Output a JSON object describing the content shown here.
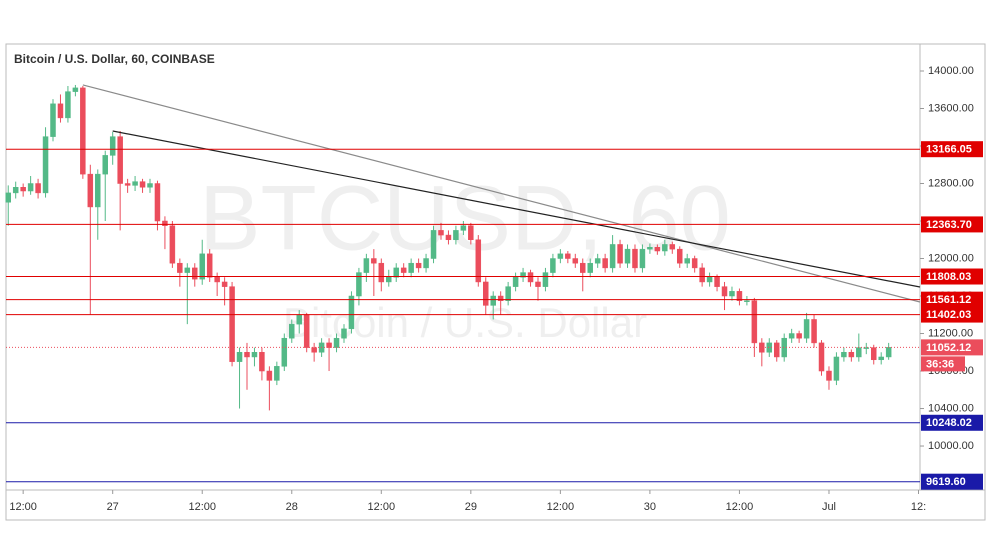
{
  "chart_data": {
    "type": "candlestick",
    "title": "Bitcoin / U.S. Dollar, 60, COINBASE",
    "watermark_symbol": "BTCUSD, 60",
    "watermark_name": "Bitcoin / U.S. Dollar",
    "up_color": "#53b987",
    "down_color": "#eb4d5c",
    "open": [
      12600,
      12700,
      12760,
      12720,
      12800,
      12700,
      13300,
      13650,
      13500,
      13780,
      13820,
      12900,
      12550,
      12900,
      13100,
      13300,
      12800,
      12780,
      12820,
      12760,
      12800,
      12400,
      12350,
      11950,
      11850,
      11900,
      11780,
      12050,
      11800,
      11750,
      11700,
      10900,
      11000,
      10950,
      11000,
      10800,
      10700,
      10850,
      11150,
      11300,
      11400,
      11050,
      11000,
      11100,
      11050,
      11150,
      11250,
      11600,
      11850,
      12000,
      11950,
      11750,
      11800,
      11900,
      11850,
      11950,
      11900,
      12000,
      12300,
      12250,
      12200,
      12300,
      12350,
      12200,
      11750,
      11500,
      11600,
      11550,
      11700,
      11800,
      11850,
      11750,
      11700,
      11850,
      12000,
      12050,
      12000,
      11950,
      11850,
      11950,
      12000,
      11900,
      12150,
      11950,
      12100,
      11900,
      12100,
      12120,
      12080,
      12150,
      12100,
      11950,
      12000,
      11900,
      11750,
      11800,
      11700,
      11600,
      11650,
      11550,
      11550,
      11100,
      11000,
      11100,
      10950,
      11150,
      11200,
      11150,
      11350,
      11100,
      10800,
      10700,
      10950,
      11000,
      10950,
      11050,
      11050,
      10920,
      10950
    ],
    "high": [
      12780,
      12820,
      12800,
      12880,
      12850,
      13400,
      13700,
      13750,
      13840,
      13851,
      13840,
      13000,
      12950,
      13150,
      13350,
      13360,
      12850,
      12880,
      12850,
      12850,
      12830,
      12450,
      12400,
      12000,
      11950,
      11950,
      12200,
      12100,
      11850,
      11800,
      11750,
      11050,
      11100,
      11050,
      11050,
      10850,
      10900,
      11200,
      11350,
      11450,
      11420,
      11100,
      11150,
      11150,
      11200,
      11300,
      11650,
      11900,
      12050,
      12100,
      12000,
      11880,
      11950,
      11950,
      12000,
      12000,
      12050,
      12350,
      12380,
      12300,
      12350,
      12400,
      12380,
      12250,
      11800,
      11650,
      11650,
      11750,
      11850,
      11900,
      11880,
      11800,
      11900,
      12050,
      12100,
      12080,
      12050,
      12000,
      12000,
      12050,
      12050,
      12250,
      12200,
      12150,
      12150,
      12150,
      12160,
      12150,
      12200,
      12180,
      12130,
      12050,
      12030,
      11950,
      11850,
      11830,
      11750,
      11700,
      11680,
      11600,
      11580,
      11150,
      11150,
      11130,
      11200,
      11250,
      11230,
      11420,
      11400,
      11130,
      10850,
      11000,
      11050,
      11030,
      11200,
      11100,
      11080,
      11000,
      11100
    ],
    "low": [
      12350,
      12640,
      12660,
      12680,
      12640,
      12650,
      13250,
      13450,
      13450,
      13730,
      12850,
      11400,
      12200,
      12400,
      13000,
      12300,
      12700,
      12720,
      12700,
      12700,
      12300,
      12100,
      11900,
      11700,
      11300,
      11700,
      11720,
      11750,
      11600,
      11500,
      10850,
      10400,
      10600,
      10850,
      10700,
      10380,
      10650,
      10800,
      11100,
      11200,
      11000,
      10900,
      10950,
      10800,
      11000,
      11100,
      11200,
      11500,
      11750,
      11600,
      11650,
      11700,
      11750,
      11800,
      11800,
      11850,
      11850,
      11950,
      12200,
      12150,
      12150,
      12250,
      12150,
      11700,
      11400,
      11350,
      11400,
      11500,
      11650,
      11750,
      11700,
      11550,
      11650,
      11800,
      11950,
      11950,
      11900,
      11650,
      11800,
      11900,
      11850,
      11850,
      11900,
      11900,
      11850,
      11850,
      12050,
      12040,
      12030,
      12050,
      11900,
      11900,
      11850,
      11700,
      11700,
      11650,
      11450,
      11550,
      11500,
      11500,
      10950,
      10850,
      10950,
      10900,
      10900,
      11100,
      11100,
      11100,
      11050,
      10750,
      10600,
      10650,
      10900,
      10900,
      10900,
      10980,
      10870,
      10870,
      10920
    ],
    "close": [
      12700,
      12760,
      12720,
      12800,
      12700,
      13300,
      13650,
      13500,
      13780,
      13820,
      12900,
      12550,
      12900,
      13100,
      13300,
      12800,
      12780,
      12820,
      12760,
      12800,
      12400,
      12350,
      11950,
      11850,
      11900,
      11780,
      12050,
      11800,
      11750,
      11700,
      10900,
      11000,
      10950,
      11000,
      10800,
      10700,
      10850,
      11150,
      11300,
      11400,
      11050,
      11000,
      11100,
      11050,
      11150,
      11250,
      11600,
      11850,
      12000,
      11950,
      11750,
      11800,
      11900,
      11850,
      11950,
      11900,
      12000,
      12300,
      12250,
      12200,
      12300,
      12350,
      12200,
      11750,
      11500,
      11600,
      11550,
      11700,
      11800,
      11850,
      11750,
      11700,
      11850,
      12000,
      12050,
      12000,
      11950,
      11850,
      11950,
      12000,
      11900,
      12150,
      11950,
      12100,
      11900,
      12100,
      12120,
      12080,
      12150,
      12100,
      11950,
      12000,
      11900,
      11750,
      11800,
      11700,
      11600,
      11650,
      11550,
      11550,
      11100,
      11000,
      11100,
      10950,
      11150,
      11200,
      11150,
      11350,
      11100,
      10800,
      10700,
      10950,
      11000,
      10950,
      11050,
      11050,
      10920,
      10950,
      11052.12
    ],
    "xlim": [
      -0.3,
      122.2
    ],
    "xticks": [
      {
        "value": 2,
        "label": "12:00"
      },
      {
        "value": 14,
        "label": "27"
      },
      {
        "value": 26,
        "label": "12:00"
      },
      {
        "value": 38,
        "label": "28"
      },
      {
        "value": 50,
        "label": "12:00"
      },
      {
        "value": 62,
        "label": "29"
      },
      {
        "value": 74,
        "label": "12:00"
      },
      {
        "value": 86,
        "label": "30"
      },
      {
        "value": 98,
        "label": "12:00"
      },
      {
        "value": 110,
        "label": "Jul"
      },
      {
        "value": 122,
        "label": "12:"
      }
    ],
    "ylim": [
      9531,
      14288
    ],
    "yticks": [
      {
        "value": 14000,
        "label": "14000.00"
      },
      {
        "value": 13600,
        "label": "13600.00"
      },
      {
        "value": 13200,
        "label": "13200.00"
      },
      {
        "value": 12800,
        "label": "12800.00"
      },
      {
        "value": 12400,
        "label": "12400.00"
      },
      {
        "value": 12000,
        "label": "12000.00"
      },
      {
        "value": 11600,
        "label": "11600.00"
      },
      {
        "value": 11200,
        "label": "11200.00"
      },
      {
        "value": 10800,
        "label": "10800.00"
      },
      {
        "value": 10400,
        "label": "10400.00"
      },
      {
        "value": 10000,
        "label": "10000.00"
      }
    ],
    "resistance_levels": {
      "color": "#e00000",
      "values": [
        13166.05,
        {
          "value": 12363.7,
          "label": "12363.70"
        },
        11808.03,
        11561.12,
        11402.03
      ]
    },
    "support_levels": {
      "color": "#1a1aa8",
      "values": [
        10248.02,
        {
          "value": 9619.6,
          "label": "9619.60"
        }
      ]
    },
    "trendlines": [
      {
        "color": "#8a8a8a",
        "x": [
          10,
          122.2
        ],
        "y": [
          13851,
          11536
        ]
      },
      {
        "color": "#222222",
        "x": [
          14,
          122.2
        ],
        "y": [
          13360,
          11696
        ]
      }
    ],
    "countdown": "36:36"
  }
}
